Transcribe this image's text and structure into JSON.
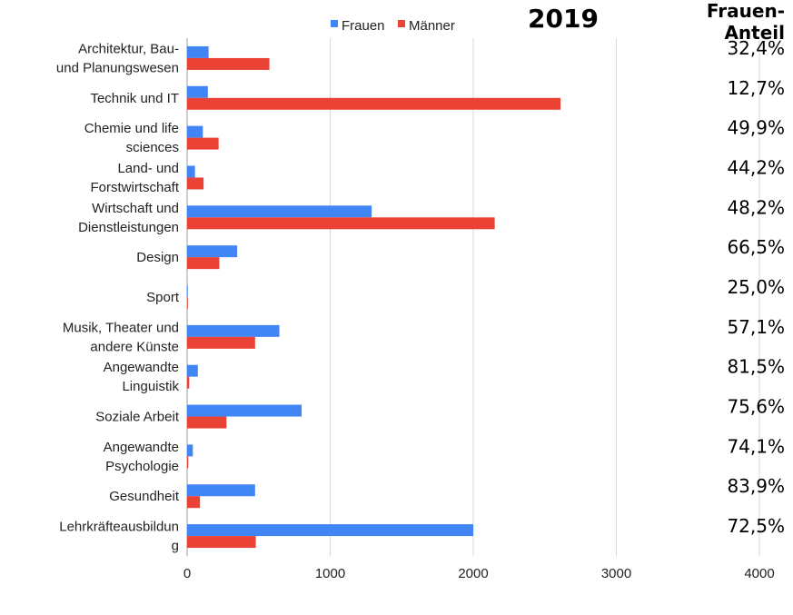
{
  "chart_data": {
    "type": "bar",
    "orientation": "horizontal",
    "title": "2019",
    "categories": [
      [
        "Architektur, Bau-",
        "und Planungswesen"
      ],
      [
        "Technik und IT"
      ],
      [
        "Chemie und life",
        "sciences"
      ],
      [
        "Land- und",
        "Forstwirtschaft"
      ],
      [
        "Wirtschaft und",
        "Dienstleistungen"
      ],
      [
        "Design"
      ],
      [
        "Sport"
      ],
      [
        "Musik, Theater und",
        "andere Künste"
      ],
      [
        "Angewandte",
        "Linguistik"
      ],
      [
        "Soziale Arbeit"
      ],
      [
        "Angewandte",
        "Psychologie"
      ],
      [
        "Gesundheit"
      ],
      [
        "Lehrkräfteausbildun",
        "g"
      ]
    ],
    "series": [
      {
        "name": "Frauen",
        "color": "#4285f4",
        "values": [
          150,
          145,
          110,
          55,
          1290,
          350,
          5,
          645,
          75,
          800,
          40,
          475,
          2000
        ]
      },
      {
        "name": "Männer",
        "color": "#ea4335",
        "values": [
          575,
          2610,
          220,
          115,
          2150,
          225,
          5,
          475,
          15,
          275,
          8,
          90,
          480
        ]
      }
    ],
    "xlim": [
      0,
      4000
    ],
    "xticks": [
      0,
      1000,
      2000,
      3000,
      4000
    ],
    "grid": true,
    "legend_position": "top",
    "frauen_anteil": {
      "header": [
        "Frauen-",
        "Anteil"
      ],
      "values": [
        "32,4%",
        "12,7%",
        "49,9%",
        "44,2%",
        "48,2%",
        "66,5%",
        "25,0%",
        "57,1%",
        "81,5%",
        "75,6%",
        "74,1%",
        "83,9%",
        "72,5%"
      ]
    }
  }
}
